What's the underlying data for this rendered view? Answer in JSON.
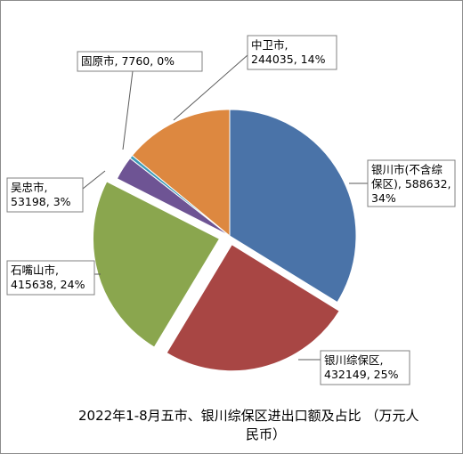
{
  "chart_data": {
    "type": "pie",
    "title_lines": [
      "2022年1-8月五市、银川综保区进出口额及占比 （万元人",
      "民币）"
    ],
    "slices": [
      {
        "label_lines": [
          "银川市(不含综",
          "保区), 588632,",
          "34%"
        ],
        "value": 588632,
        "percent": "34%",
        "color": "#4a73a8"
      },
      {
        "label_lines": [
          "银川综保区,",
          "432149, 25%"
        ],
        "value": 432149,
        "percent": "25%",
        "color": "#a84644"
      },
      {
        "label_lines": [
          "石嘴山市,",
          "415638, 24%"
        ],
        "value": 415638,
        "percent": "24%",
        "color": "#8aa64e"
      },
      {
        "label_lines": [
          "吴忠市,",
          "53198, 3%"
        ],
        "value": 53198,
        "percent": "3%",
        "color": "#6e5494"
      },
      {
        "label_lines": [
          "固原市, 7760, 0%"
        ],
        "value": 7760,
        "percent": "0%",
        "color": "#3e9cb8"
      },
      {
        "label_lines": [
          "中卫市,",
          "244035, 14%"
        ],
        "value": 244035,
        "percent": "14%",
        "color": "#dd8840"
      }
    ]
  }
}
